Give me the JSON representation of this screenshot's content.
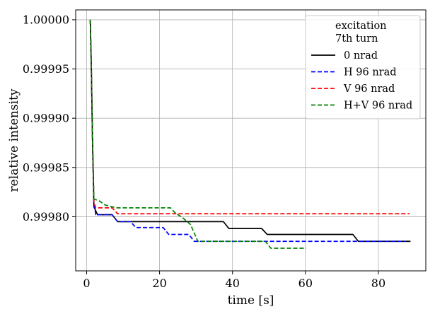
{
  "chart_data": {
    "type": "line",
    "xlabel": "time [s]",
    "ylabel": "relative intensity",
    "xlim": [
      -3,
      93
    ],
    "ylim": [
      0.999745,
      1.00001
    ],
    "xticks": [
      0,
      20,
      40,
      60,
      80
    ],
    "xtick_labels": [
      "0",
      "20",
      "40",
      "60",
      "80"
    ],
    "yticks": [
      0.9998,
      0.99985,
      0.9999,
      0.99995,
      1.0
    ],
    "ytick_labels": [
      "0.99980",
      "0.99985",
      "0.99990",
      "0.99995",
      "1.00000"
    ],
    "grid": true,
    "legend": {
      "placement": "upper-right",
      "title_lines": [
        "excitation",
        "7th turn"
      ]
    },
    "series": [
      {
        "name": "0 nrad",
        "color": "#000000",
        "dash": "solid",
        "points": [
          [
            1.0,
            1.0
          ],
          [
            1.3,
            0.99995
          ],
          [
            1.6,
            0.99988
          ],
          [
            2.0,
            0.99981
          ],
          [
            3.0,
            0.999802
          ],
          [
            7.0,
            0.999802
          ],
          [
            8.5,
            0.999795
          ],
          [
            37.5,
            0.999795
          ],
          [
            39.0,
            0.999788
          ],
          [
            48.0,
            0.999788
          ],
          [
            49.5,
            0.999782
          ],
          [
            73.0,
            0.999782
          ],
          [
            74.5,
            0.999775
          ],
          [
            88.8,
            0.999775
          ]
        ]
      },
      {
        "name": "H 96 nrad",
        "color": "#0000ff",
        "dash": "dashed",
        "points": [
          [
            1.0,
            1.0
          ],
          [
            1.3,
            0.99995
          ],
          [
            1.6,
            0.99988
          ],
          [
            2.0,
            0.999815
          ],
          [
            2.5,
            0.999802
          ],
          [
            7.0,
            0.999802
          ],
          [
            8.5,
            0.999795
          ],
          [
            12.0,
            0.999795
          ],
          [
            13.5,
            0.999789
          ],
          [
            21.0,
            0.999789
          ],
          [
            22.5,
            0.999782
          ],
          [
            28.0,
            0.999782
          ],
          [
            29.5,
            0.999775
          ],
          [
            87.5,
            0.999775
          ]
        ]
      },
      {
        "name": "V 96 nrad",
        "color": "#ff0000",
        "dash": "dashed",
        "points": [
          [
            1.0,
            1.0
          ],
          [
            1.3,
            0.99995
          ],
          [
            1.6,
            0.99988
          ],
          [
            2.0,
            0.999815
          ],
          [
            2.5,
            0.999809
          ],
          [
            7.0,
            0.999809
          ],
          [
            8.5,
            0.999803
          ],
          [
            88.5,
            0.999803
          ]
        ]
      },
      {
        "name": "H+V 96 nrad",
        "color": "#008000",
        "dash": "dashed",
        "points": [
          [
            1.0,
            1.0
          ],
          [
            1.3,
            0.99995
          ],
          [
            1.6,
            0.99988
          ],
          [
            2.0,
            0.999818
          ],
          [
            3.5,
            0.999816
          ],
          [
            5.0,
            0.999812
          ],
          [
            7.0,
            0.99981
          ],
          [
            8.5,
            0.999809
          ],
          [
            23.0,
            0.999809
          ],
          [
            24.5,
            0.999803
          ],
          [
            26.0,
            0.9998
          ],
          [
            28.5,
            0.999792
          ],
          [
            30.5,
            0.999775
          ],
          [
            49.0,
            0.999775
          ],
          [
            50.5,
            0.999768
          ],
          [
            60.2,
            0.999768
          ]
        ]
      }
    ]
  }
}
